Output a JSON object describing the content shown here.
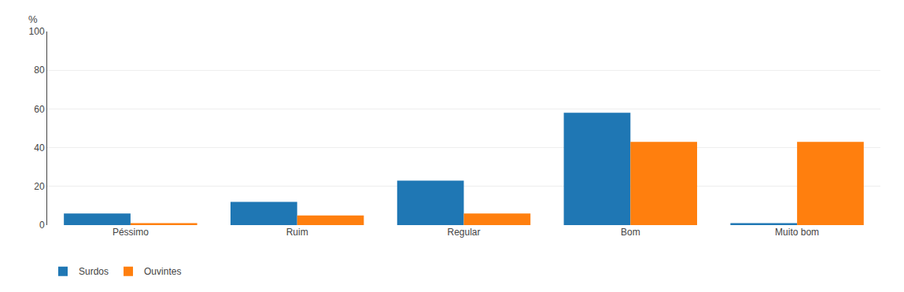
{
  "chart_data": {
    "type": "bar",
    "categories": [
      "Péssimo",
      "Ruim",
      "Regular",
      "Bom",
      "Muito bom"
    ],
    "series": [
      {
        "name": "Surdos",
        "values": [
          6,
          12,
          23,
          58,
          1
        ]
      },
      {
        "name": "Ouvintes",
        "values": [
          1,
          5,
          6,
          43,
          43
        ]
      }
    ],
    "ylabel": "%",
    "ylim": [
      0,
      100
    ],
    "yticks": [
      0,
      20,
      40,
      60,
      80,
      100
    ],
    "grid": true,
    "legend": "bottom"
  }
}
